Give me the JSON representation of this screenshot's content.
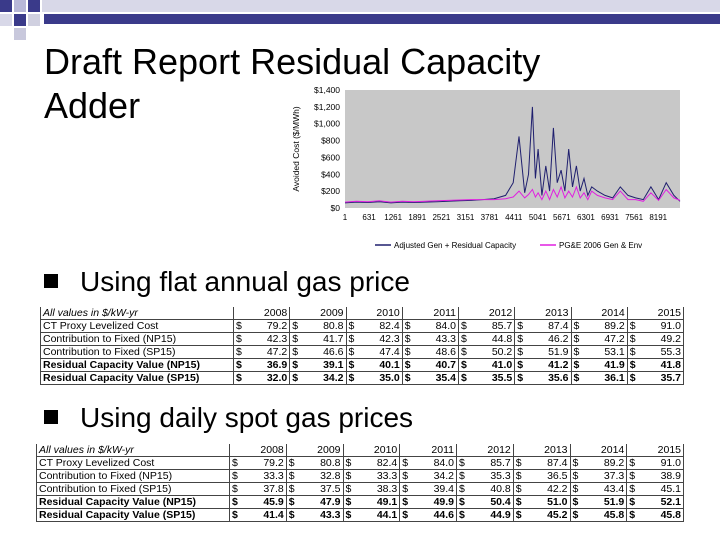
{
  "title": "Draft Report Residual Capacity Adder",
  "bullets": [
    "Using flat annual gas price",
    "Using daily spot gas prices"
  ],
  "colors": {
    "series_adjusted": "#1f1f6e",
    "series_pge": "#e020e0",
    "plot_bg": "#c8c8c8",
    "squares": "#3a3a8a"
  },
  "chart_data": {
    "type": "line",
    "ylabel": "Avoided Cost ($/MWh)",
    "yticks": [
      "$0",
      "$200",
      "$400",
      "$600",
      "$800",
      "$1,000",
      "$1,200",
      "$1,400"
    ],
    "ylim": [
      0,
      1400
    ],
    "xticks": [
      "1",
      "631",
      "1261",
      "1891",
      "2521",
      "3151",
      "3781",
      "4411",
      "5041",
      "5671",
      "6301",
      "6931",
      "7561",
      "8191"
    ],
    "xlim": [
      1,
      8760
    ],
    "legend": [
      "Adjusted Gen + Residual Capacity",
      "PG&E 2006 Gen & Env"
    ],
    "legend_position": "bottom",
    "series": [
      {
        "name": "Adjusted Gen + Residual Capacity",
        "x": [
          1,
          300,
          600,
          900,
          1200,
          1500,
          1800,
          2100,
          2400,
          2700,
          3000,
          3300,
          3600,
          3900,
          4200,
          4400,
          4550,
          4700,
          4800,
          4900,
          4980,
          5050,
          5150,
          5250,
          5350,
          5450,
          5550,
          5650,
          5750,
          5850,
          5950,
          6050,
          6150,
          6250,
          6350,
          6450,
          6600,
          6800,
          7000,
          7200,
          7400,
          7600,
          7800,
          8000,
          8200,
          8400,
          8600,
          8760
        ],
        "y": [
          60,
          70,
          65,
          75,
          60,
          70,
          65,
          70,
          75,
          80,
          85,
          90,
          100,
          110,
          150,
          300,
          850,
          180,
          400,
          1200,
          350,
          700,
          150,
          500,
          200,
          950,
          300,
          450,
          200,
          700,
          250,
          500,
          200,
          350,
          150,
          250,
          200,
          150,
          120,
          250,
          150,
          120,
          100,
          250,
          100,
          300,
          150,
          80
        ]
      },
      {
        "name": "PG&E 2006 Gen & Env",
        "x": [
          1,
          300,
          600,
          900,
          1200,
          1500,
          1800,
          2100,
          2400,
          2700,
          3000,
          3300,
          3600,
          3900,
          4200,
          4400,
          4550,
          4700,
          4800,
          4900,
          4980,
          5050,
          5150,
          5250,
          5350,
          5450,
          5550,
          5650,
          5750,
          5850,
          5950,
          6050,
          6150,
          6250,
          6350,
          6450,
          6600,
          6800,
          7000,
          7200,
          7400,
          7600,
          7800,
          8000,
          8200,
          8400,
          8600,
          8760
        ],
        "y": [
          70,
          80,
          75,
          85,
          70,
          80,
          75,
          80,
          85,
          90,
          95,
          100,
          100,
          100,
          110,
          130,
          200,
          120,
          160,
          220,
          130,
          180,
          100,
          200,
          100,
          220,
          130,
          250,
          120,
          200,
          130,
          250,
          120,
          180,
          100,
          200,
          150,
          120,
          100,
          200,
          100,
          100,
          80,
          180,
          90,
          220,
          120,
          90
        ]
      }
    ]
  },
  "tables": [
    {
      "header": [
        "All values in $/kW-yr",
        "2008",
        "2009",
        "2010",
        "2011",
        "2012",
        "2013",
        "2014",
        "2015"
      ],
      "rows": [
        {
          "label": "CT Proxy Levelized Cost",
          "values": [
            "79.2",
            "80.8",
            "82.4",
            "84.0",
            "85.7",
            "87.4",
            "89.2",
            "91.0"
          ],
          "bold": false
        },
        {
          "label": "Contribution to Fixed (NP15)",
          "values": [
            "42.3",
            "41.7",
            "42.3",
            "43.3",
            "44.8",
            "46.2",
            "47.2",
            "49.2"
          ],
          "bold": false
        },
        {
          "label": "Contribution to Fixed (SP15)",
          "values": [
            "47.2",
            "46.6",
            "47.4",
            "48.6",
            "50.2",
            "51.9",
            "53.1",
            "55.3"
          ],
          "bold": false
        },
        {
          "label": "Residual Capacity Value (NP15)",
          "values": [
            "36.9",
            "39.1",
            "40.1",
            "40.7",
            "41.0",
            "41.2",
            "41.9",
            "41.8"
          ],
          "bold": true
        },
        {
          "label": "Residual Capacity Value (SP15)",
          "values": [
            "32.0",
            "34.2",
            "35.0",
            "35.4",
            "35.5",
            "35.6",
            "36.1",
            "35.7"
          ],
          "bold": true
        }
      ]
    },
    {
      "header": [
        "All values in $/kW-yr",
        "2008",
        "2009",
        "2010",
        "2011",
        "2012",
        "2013",
        "2014",
        "2015"
      ],
      "rows": [
        {
          "label": "CT Proxy Levelized Cost",
          "values": [
            "79.2",
            "80.8",
            "82.4",
            "84.0",
            "85.7",
            "87.4",
            "89.2",
            "91.0"
          ],
          "bold": false
        },
        {
          "label": "Contribution to Fixed (NP15)",
          "values": [
            "33.3",
            "32.8",
            "33.3",
            "34.2",
            "35.3",
            "36.5",
            "37.3",
            "38.9"
          ],
          "bold": false
        },
        {
          "label": "Contribution to Fixed (SP15)",
          "values": [
            "37.8",
            "37.5",
            "38.3",
            "39.4",
            "40.8",
            "42.2",
            "43.4",
            "45.1"
          ],
          "bold": false
        },
        {
          "label": "Residual Capacity Value (NP15)",
          "values": [
            "45.9",
            "47.9",
            "49.1",
            "49.9",
            "50.4",
            "51.0",
            "51.9",
            "52.1"
          ],
          "bold": true
        },
        {
          "label": "Residual Capacity Value (SP15)",
          "values": [
            "41.4",
            "43.3",
            "44.1",
            "44.6",
            "44.9",
            "45.2",
            "45.8",
            "45.8"
          ],
          "bold": true
        }
      ]
    }
  ],
  "currency_symbol": "$"
}
